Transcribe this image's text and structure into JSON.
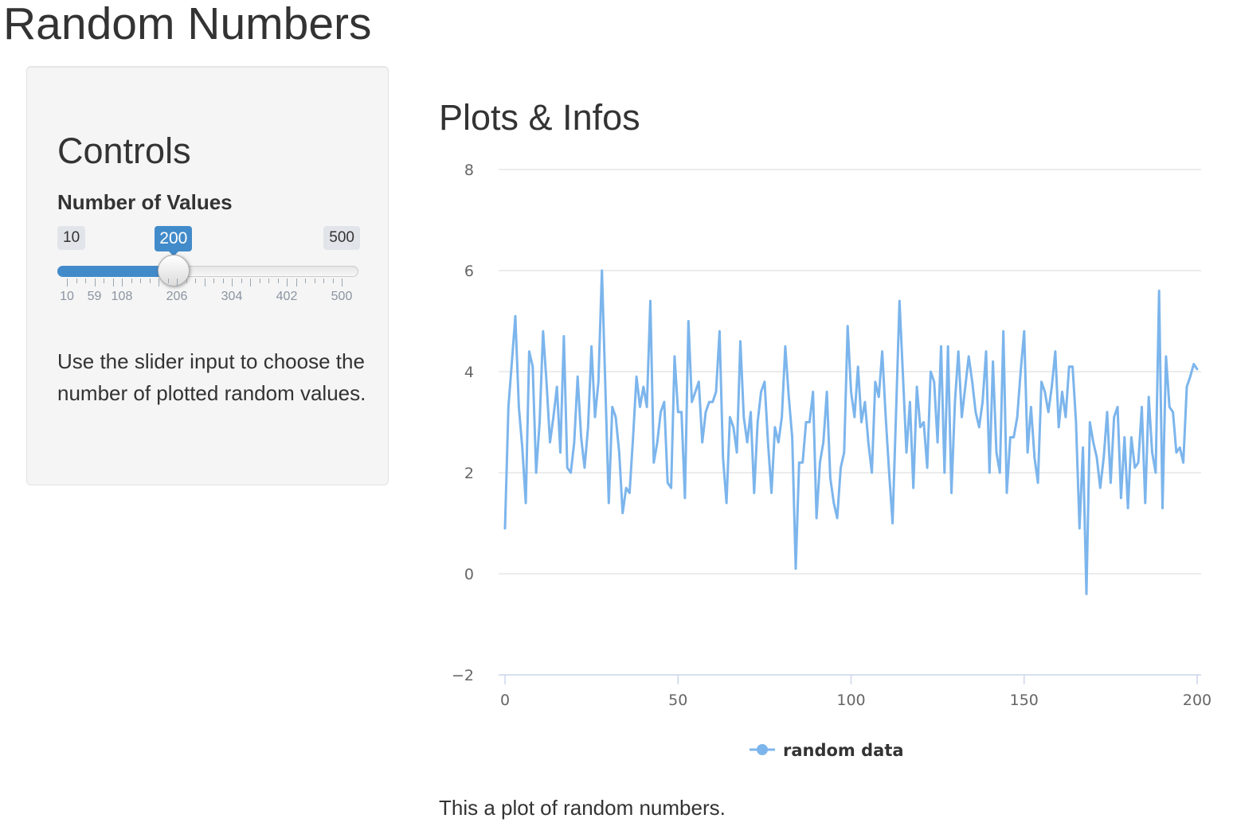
{
  "page": {
    "title": "Random Numbers"
  },
  "sidebar": {
    "title": "Controls",
    "slider": {
      "label": "Number of Values",
      "min": 10,
      "max": 500,
      "value": 200,
      "min_label": "10",
      "max_label": "500",
      "value_label": "200",
      "tick_labels": [
        "10",
        "59",
        "108",
        "206",
        "304",
        "402",
        "500"
      ],
      "accent_color": "#428bca"
    },
    "help_text": "Use the slider input to choose the number of plotted random values."
  },
  "main": {
    "title": "Plots & Infos",
    "caption": "This a plot of random numbers."
  },
  "chart_data": {
    "type": "line",
    "title": "",
    "xlabel": "",
    "ylabel": "",
    "xlim": [
      0,
      200
    ],
    "ylim": [
      -2,
      8
    ],
    "x_ticks": [
      "0",
      "50",
      "100",
      "150",
      "200"
    ],
    "y_ticks": [
      "−2",
      "0",
      "2",
      "4",
      "6",
      "8"
    ],
    "grid": "horizontal",
    "legend_position": "bottom-center",
    "series": [
      {
        "name": "random data",
        "color": "#7cb5ec",
        "x": [
          0,
          1,
          2,
          3,
          4,
          5,
          6,
          7,
          8,
          9,
          10,
          11,
          12,
          13,
          14,
          15,
          16,
          17,
          18,
          19,
          20,
          21,
          22,
          23,
          24,
          25,
          26,
          27,
          28,
          29,
          30,
          31,
          32,
          33,
          34,
          35,
          36,
          37,
          38,
          39,
          40,
          41,
          42,
          43,
          44,
          45,
          46,
          47,
          48,
          49,
          50,
          51,
          52,
          53,
          54,
          55,
          56,
          57,
          58,
          59,
          60,
          61,
          62,
          63,
          64,
          65,
          66,
          67,
          68,
          69,
          70,
          71,
          72,
          73,
          74,
          75,
          76,
          77,
          78,
          79,
          80,
          81,
          82,
          83,
          84,
          85,
          86,
          87,
          88,
          89,
          90,
          91,
          92,
          93,
          94,
          95,
          96,
          97,
          98,
          99,
          100,
          101,
          102,
          103,
          104,
          105,
          106,
          107,
          108,
          109,
          110,
          111,
          112,
          113,
          114,
          115,
          116,
          117,
          118,
          119,
          120,
          121,
          122,
          123,
          124,
          125,
          126,
          127,
          128,
          129,
          130,
          131,
          132,
          133,
          134,
          135,
          136,
          137,
          138,
          139,
          140,
          141,
          142,
          143,
          144,
          145,
          146,
          147,
          148,
          149,
          150,
          151,
          152,
          153,
          154,
          155,
          156,
          157,
          158,
          159,
          160,
          161,
          162,
          163,
          164,
          165,
          166,
          167,
          168,
          169,
          170,
          171,
          172,
          173,
          174,
          175,
          176,
          177,
          178,
          179,
          180,
          181,
          182,
          183,
          184,
          185,
          186,
          187,
          188,
          189,
          190,
          191,
          192,
          193,
          194,
          195,
          196,
          197,
          198,
          199,
          200
        ],
        "values": [
          0.9,
          3.3,
          4.2,
          5.1,
          3.3,
          2.5,
          1.4,
          4.4,
          4.1,
          2.0,
          3.0,
          4.8,
          3.8,
          2.6,
          3.1,
          3.7,
          2.4,
          4.7,
          2.1,
          2.0,
          2.6,
          3.9,
          2.7,
          2.1,
          2.9,
          4.5,
          3.1,
          3.8,
          6.0,
          3.7,
          1.4,
          3.3,
          3.1,
          2.4,
          1.2,
          1.7,
          1.6,
          2.7,
          3.9,
          3.3,
          3.7,
          3.3,
          5.4,
          2.2,
          2.6,
          3.2,
          3.4,
          1.8,
          1.7,
          4.3,
          3.2,
          3.2,
          1.5,
          5.0,
          3.4,
          3.6,
          3.8,
          2.6,
          3.2,
          3.4,
          3.4,
          3.6,
          4.8,
          2.3,
          1.4,
          3.1,
          2.9,
          2.4,
          4.6,
          3.1,
          2.6,
          3.2,
          1.6,
          3.0,
          3.6,
          3.8,
          2.6,
          1.6,
          2.9,
          2.6,
          3.1,
          4.5,
          3.5,
          2.7,
          0.1,
          2.2,
          2.2,
          3.0,
          3.0,
          3.6,
          1.1,
          2.2,
          2.6,
          3.6,
          1.9,
          1.4,
          1.1,
          2.1,
          2.4,
          4.9,
          3.6,
          3.1,
          4.1,
          3.0,
          3.4,
          2.6,
          2.0,
          3.8,
          3.5,
          4.4,
          3.1,
          2.0,
          1.0,
          3.2,
          5.4,
          3.9,
          2.4,
          3.4,
          1.7,
          3.7,
          2.9,
          3.0,
          2.1,
          4.0,
          3.8,
          2.6,
          4.5,
          2.0,
          4.5,
          1.6,
          3.4,
          4.4,
          3.1,
          3.7,
          4.3,
          3.8,
          3.2,
          2.9,
          3.4,
          4.4,
          2.0,
          4.2,
          2.4,
          2.0,
          4.8,
          1.6,
          2.7,
          2.7,
          3.1,
          4.0,
          4.8,
          2.4,
          3.3,
          2.3,
          1.8,
          3.8,
          3.6,
          3.2,
          3.7,
          4.4,
          2.9,
          3.6,
          3.1,
          4.1,
          4.1,
          3.0,
          0.9,
          2.5,
          -0.4,
          3.0,
          2.6,
          2.3,
          1.7,
          2.3,
          3.2,
          1.8,
          3.1,
          3.3,
          1.5,
          2.7,
          1.3,
          2.7,
          2.1,
          2.2,
          3.3,
          1.4,
          3.5,
          2.4,
          2.0,
          5.6,
          1.3,
          4.3,
          3.3,
          3.2,
          2.4,
          2.5,
          2.2,
          3.7,
          3.9,
          4.15,
          4.05
        ]
      }
    ]
  }
}
